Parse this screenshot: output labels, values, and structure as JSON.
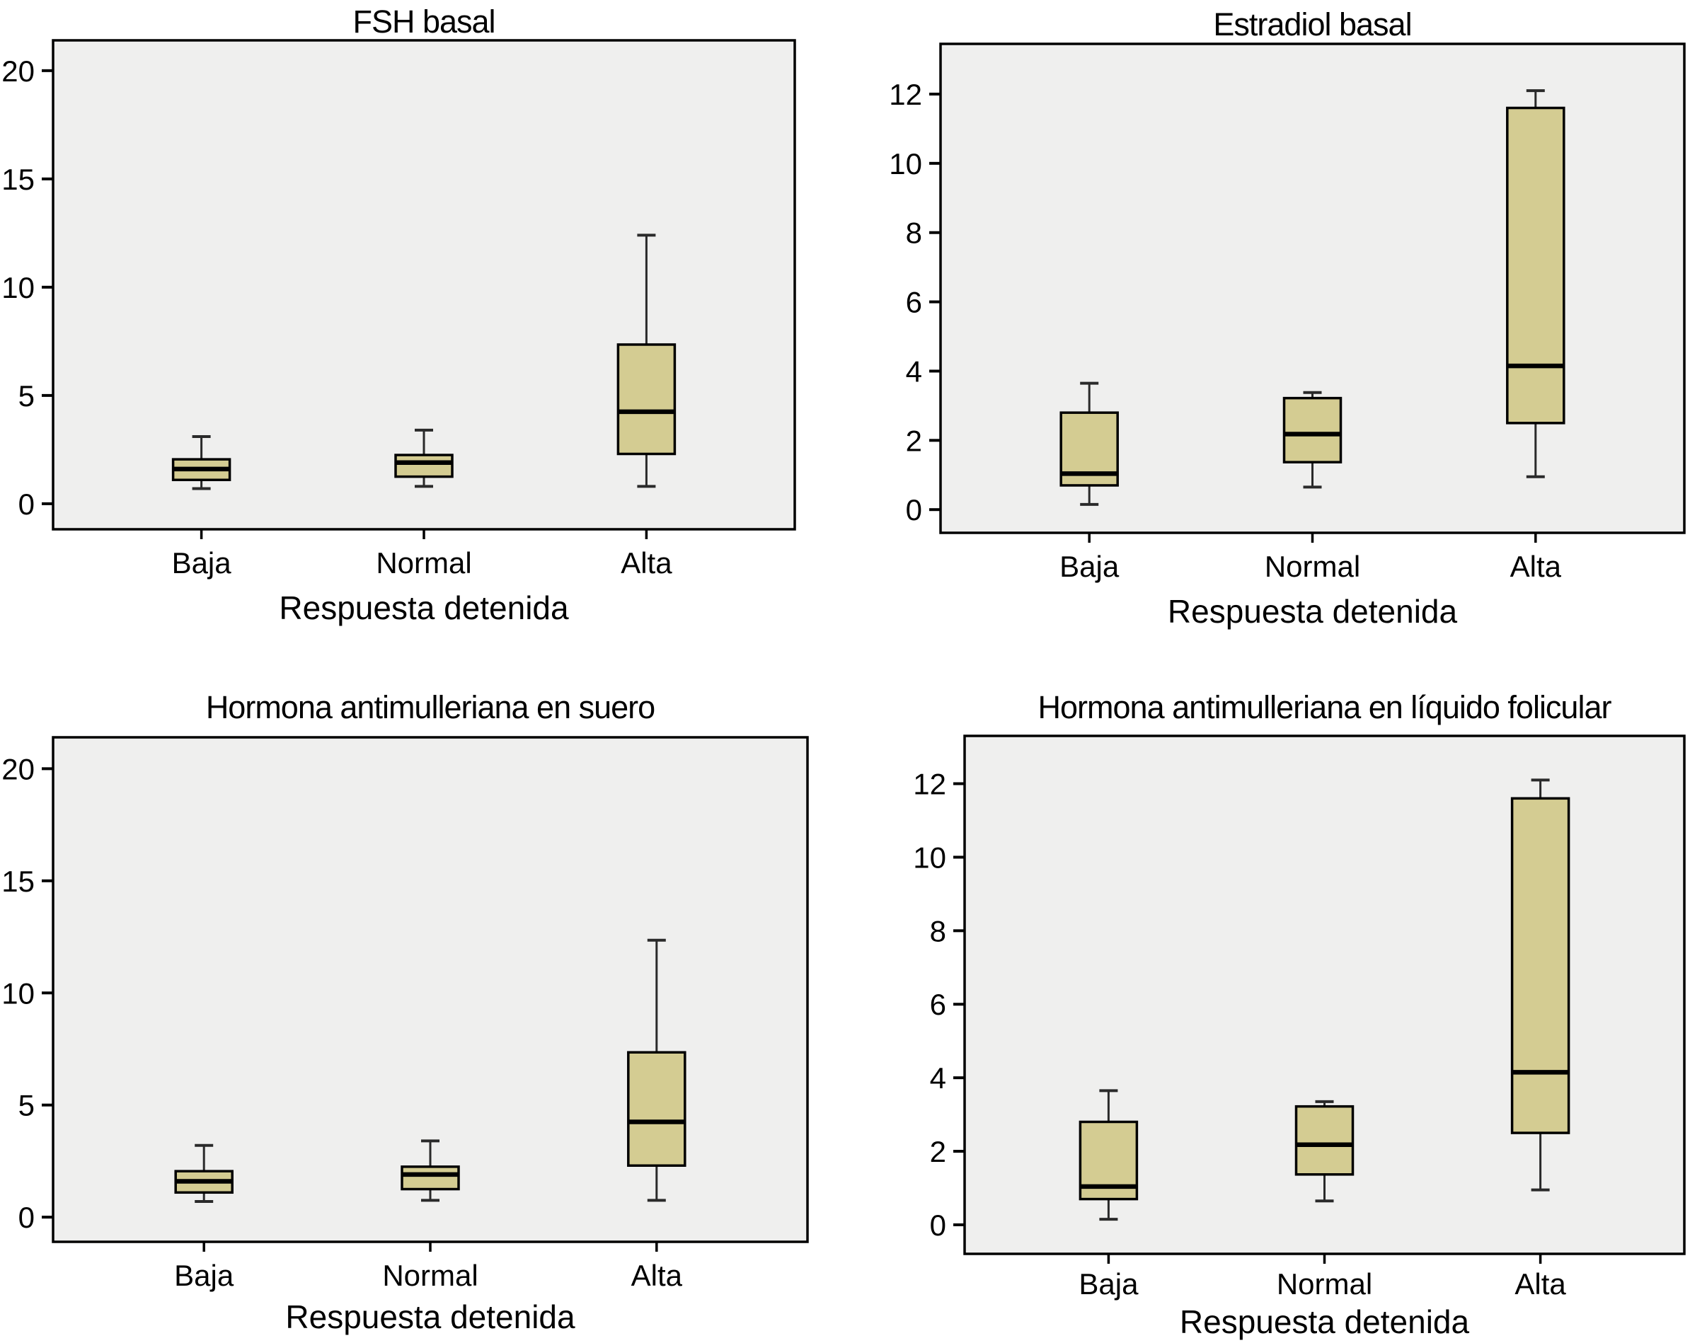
{
  "figure": {
    "description": "Cuatro diagramas de caja (SPSS) comparando niveles hormonales por tipo de respuesta",
    "x_axis_title": "Respuesta detenida"
  },
  "style": {
    "box_fill": "#d4cc92",
    "box_border": "#000000",
    "median_color": "#000000",
    "whisker_color": "#2a2a2a",
    "plot_background": "#efefee",
    "frame_color": "#000000",
    "text_color": "#000000",
    "page_background": "#ffffff"
  },
  "chart_data": [
    {
      "id": "fsh-basal",
      "type": "boxplot",
      "panel": "top-left",
      "title": "FSH basal",
      "xlabel": "Respuesta detenida",
      "ylabel": "",
      "grid": false,
      "legend": false,
      "categories": [
        "Baja",
        "Normal",
        "Alta"
      ],
      "yticks": [
        0,
        5,
        10,
        15,
        20
      ],
      "ylim": [
        -1.18,
        21.4
      ],
      "boxes": [
        {
          "category": "Baja",
          "whisker_low": 0.7,
          "q1": 1.1,
          "median": 1.6,
          "q3": 2.05,
          "whisker_high": 3.1
        },
        {
          "category": "Normal",
          "whisker_low": 0.8,
          "q1": 1.25,
          "median": 1.9,
          "q3": 2.25,
          "whisker_high": 3.4
        },
        {
          "category": "Alta",
          "whisker_low": 0.8,
          "q1": 2.3,
          "median": 4.25,
          "q3": 7.35,
          "whisker_high": 12.4
        }
      ]
    },
    {
      "id": "estradiol-basal",
      "type": "boxplot",
      "panel": "top-right",
      "title": "Estradiol basal",
      "xlabel": "Respuesta detenida",
      "ylabel": "",
      "grid": false,
      "legend": false,
      "categories": [
        "Baja",
        "Normal",
        "Alta"
      ],
      "yticks": [
        0,
        2,
        4,
        6,
        8,
        10,
        12
      ],
      "ylim": [
        -0.67,
        13.45
      ],
      "boxes": [
        {
          "category": "Baja",
          "whisker_low": 0.15,
          "q1": 0.7,
          "median": 1.04,
          "q3": 2.8,
          "whisker_high": 3.65
        },
        {
          "category": "Normal",
          "whisker_low": 0.65,
          "q1": 1.37,
          "median": 2.18,
          "q3": 3.22,
          "whisker_high": 3.38
        },
        {
          "category": "Alta",
          "whisker_low": 0.95,
          "q1": 2.5,
          "median": 4.15,
          "q3": 11.6,
          "whisker_high": 12.1
        }
      ]
    },
    {
      "id": "hormona-antimulleriana-suero",
      "type": "boxplot",
      "panel": "bottom-left",
      "title": "Hormona antimulleriana en suero",
      "xlabel": "Respuesta detenida",
      "ylabel": "",
      "grid": false,
      "legend": false,
      "categories": [
        "Baja",
        "Normal",
        "Alta"
      ],
      "yticks": [
        0,
        5,
        10,
        15,
        20
      ],
      "ylim": [
        -1.1,
        21.4
      ],
      "boxes": [
        {
          "category": "Baja",
          "whisker_low": 0.7,
          "q1": 1.1,
          "median": 1.6,
          "q3": 2.05,
          "whisker_high": 3.2
        },
        {
          "category": "Normal",
          "whisker_low": 0.75,
          "q1": 1.25,
          "median": 1.9,
          "q3": 2.25,
          "whisker_high": 3.4
        },
        {
          "category": "Alta",
          "whisker_low": 0.75,
          "q1": 2.3,
          "median": 4.25,
          "q3": 7.35,
          "whisker_high": 12.35
        }
      ]
    },
    {
      "id": "hormona-antimulleriana-liquido-folicular",
      "type": "boxplot",
      "panel": "bottom-right",
      "title": "Hormona antimulleriana en líquido folicular",
      "xlabel": "Respuesta detenida",
      "ylabel": "",
      "grid": false,
      "legend": false,
      "categories": [
        "Baja",
        "Normal",
        "Alta"
      ],
      "yticks": [
        0,
        2,
        4,
        6,
        8,
        10,
        12
      ],
      "ylim": [
        -0.79,
        13.3
      ],
      "boxes": [
        {
          "category": "Baja",
          "whisker_low": 0.15,
          "q1": 0.7,
          "median": 1.04,
          "q3": 2.8,
          "whisker_high": 3.65
        },
        {
          "category": "Normal",
          "whisker_low": 0.65,
          "q1": 1.37,
          "median": 2.18,
          "q3": 3.22,
          "whisker_high": 3.35
        },
        {
          "category": "Alta",
          "whisker_low": 0.95,
          "q1": 2.5,
          "median": 4.15,
          "q3": 11.6,
          "whisker_high": 12.1
        }
      ]
    }
  ]
}
